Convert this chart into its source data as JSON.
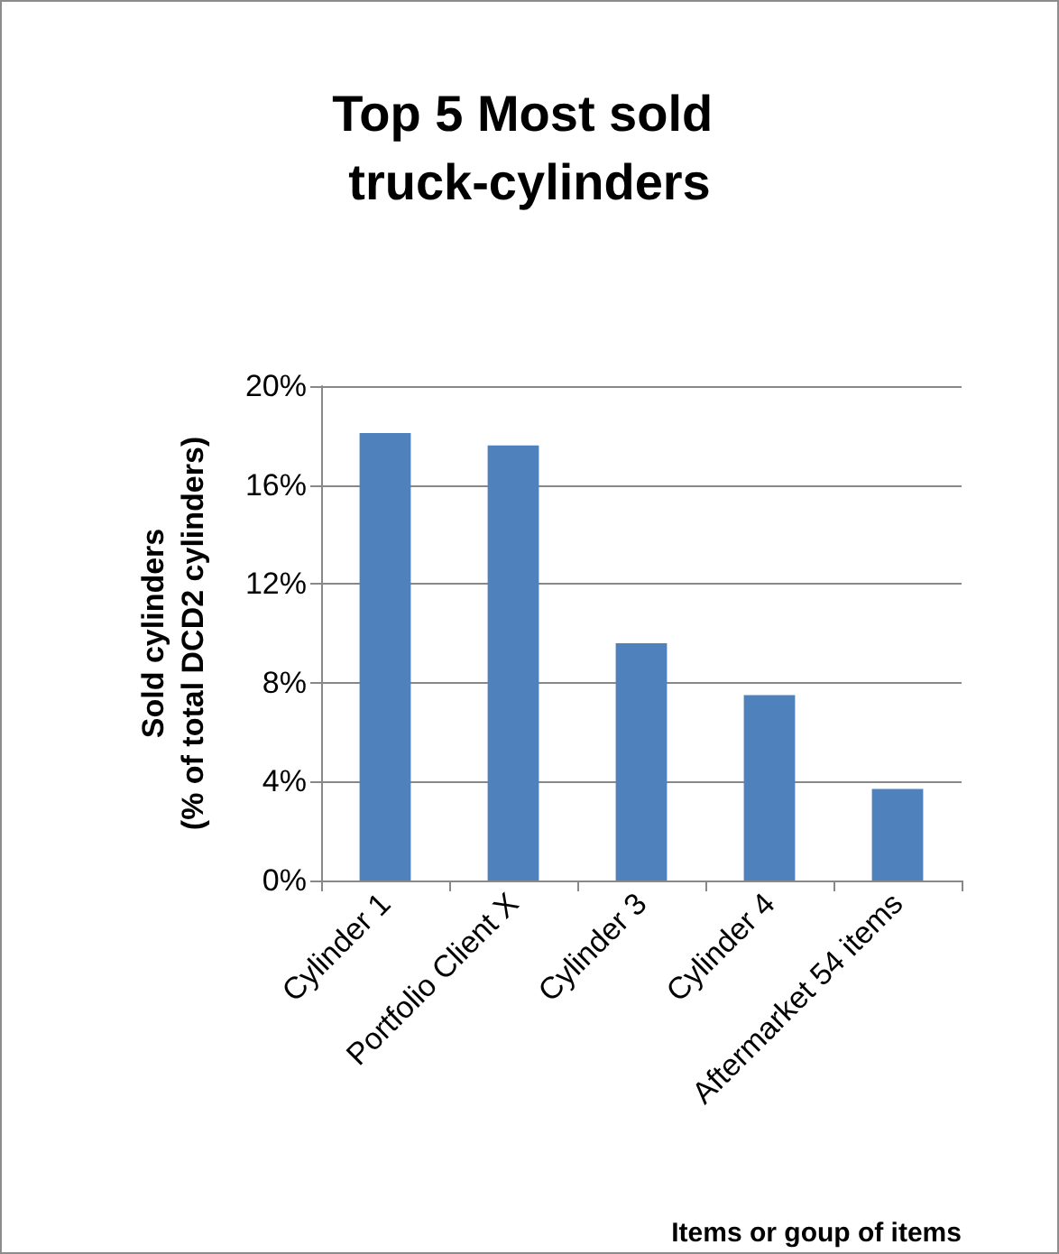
{
  "chart_data": {
    "type": "bar",
    "title": "Top 5 Most sold truck-cylinders",
    "xlabel": "Items or goup of items",
    "ylabel": "Sold cylinders\n(% of total DCD2 cylinders)",
    "categories": [
      "Cylinder 1",
      "Portfolio Client X",
      "Cylinder 3",
      "Cylinder 4",
      "Aftermarket 54 items"
    ],
    "values": [
      18.1,
      17.6,
      9.6,
      7.5,
      3.7
    ],
    "color": "#4f81bd",
    "ylim": [
      0,
      20
    ],
    "yticks": [
      {
        "value": 0,
        "label": "0%"
      },
      {
        "value": 4,
        "label": "4%"
      },
      {
        "value": 8,
        "label": "8%"
      },
      {
        "value": 12,
        "label": "12%"
      },
      {
        "value": 16,
        "label": "16%"
      },
      {
        "value": 20,
        "label": "20%"
      }
    ],
    "grid": "y"
  }
}
